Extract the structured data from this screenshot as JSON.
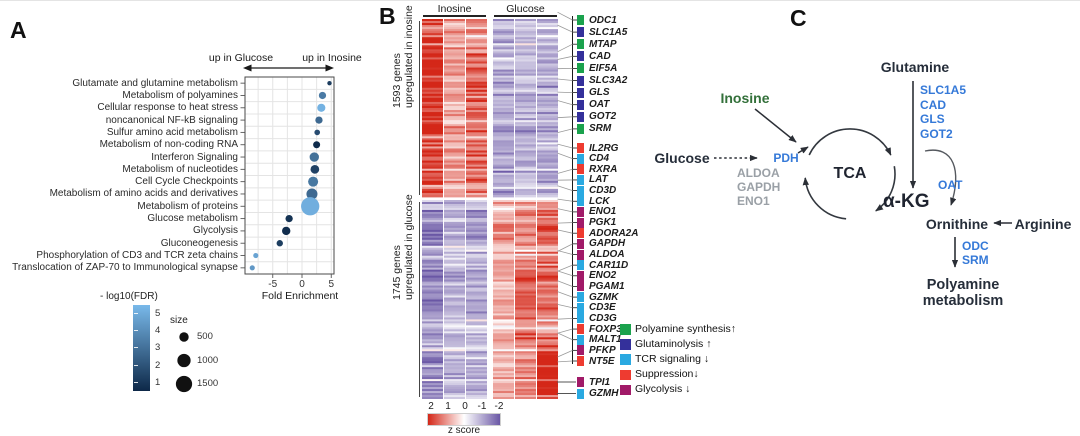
{
  "panels": {
    "a": {
      "label": "A"
    },
    "b": {
      "label": "B"
    },
    "c": {
      "label": "C"
    }
  },
  "chart_data": [
    {
      "type": "scatter",
      "panel": "A",
      "title": "",
      "xlabel": "Fold Enrichment",
      "x_ticks": [
        -5,
        0,
        5
      ],
      "xlim": [
        -9.7,
        5.5
      ],
      "grid": true,
      "header_left": "up in Glucose",
      "header_right": "up in Inosine",
      "color_legend_label": "- log10(FDR)",
      "color_legend_ticks": [
        5,
        4,
        3,
        2,
        1
      ],
      "color_scale": {
        "low_value": 1,
        "high_value": 5,
        "low_color": "#0d2848",
        "high_color": "#79b9ea"
      },
      "size_legend_label": "size",
      "size_legend_values": [
        500,
        1000,
        1500
      ],
      "points": [
        {
          "pathway": "Glutamate and glutamine metabolism",
          "fold_enrichment": 4.7,
          "neglog10_fdr": 1.6,
          "size": 110
        },
        {
          "pathway": "Metabolism of polyamines",
          "fold_enrichment": 3.5,
          "neglog10_fdr": 3.3,
          "size": 300
        },
        {
          "pathway": "Cellular response to heat stress",
          "fold_enrichment": 3.3,
          "neglog10_fdr": 4.8,
          "size": 380
        },
        {
          "pathway": "noncanonical NF-kB signaling",
          "fold_enrichment": 2.9,
          "neglog10_fdr": 2.8,
          "size": 300
        },
        {
          "pathway": "Sulfur amino acid metabolism",
          "fold_enrichment": 2.6,
          "neglog10_fdr": 2.0,
          "size": 180
        },
        {
          "pathway": "Metabolism of non-coding RNA",
          "fold_enrichment": 2.5,
          "neglog10_fdr": 1.1,
          "size": 280
        },
        {
          "pathway": "Interferon Signaling",
          "fold_enrichment": 2.1,
          "neglog10_fdr": 3.0,
          "size": 500
        },
        {
          "pathway": "Metabolism of nucleotides",
          "fold_enrichment": 2.2,
          "neglog10_fdr": 1.7,
          "size": 430
        },
        {
          "pathway": "Cell Cycle Checkpoints",
          "fold_enrichment": 1.9,
          "neglog10_fdr": 3.2,
          "size": 570
        },
        {
          "pathway": "Metabolism of amino acids and derivatives",
          "fold_enrichment": 1.7,
          "neglog10_fdr": 2.8,
          "size": 690
        },
        {
          "pathway": "Metabolism of proteins",
          "fold_enrichment": 1.4,
          "neglog10_fdr": 4.7,
          "size": 1900
        },
        {
          "pathway": "Glucose metabolism",
          "fold_enrichment": -2.2,
          "neglog10_fdr": 1.3,
          "size": 300
        },
        {
          "pathway": "Glycolysis",
          "fold_enrichment": -2.7,
          "neglog10_fdr": 1.1,
          "size": 400
        },
        {
          "pathway": "Gluconeogenesis",
          "fold_enrichment": -3.8,
          "neglog10_fdr": 1.6,
          "size": 230
        },
        {
          "pathway": "Phosphorylation of CD3 and TCR zeta chains",
          "fold_enrichment": -7.9,
          "neglog10_fdr": 4.4,
          "size": 150
        },
        {
          "pathway": "Translocation of ZAP-70 to Immunological synapse",
          "fold_enrichment": -8.5,
          "neglog10_fdr": 4.1,
          "size": 150
        }
      ]
    },
    {
      "type": "heatmap",
      "panel": "B",
      "col_groups": [
        {
          "label": "Inosine",
          "cols": 3
        },
        {
          "label": "Glucose",
          "cols": 3
        }
      ],
      "row_blocks": [
        {
          "label_line1": "1593 genes",
          "label_line2": "upregulated in inosine",
          "rows": 88,
          "col_mean_z": [
            1.6,
            0.75,
            1.15,
            -0.95,
            -0.8,
            -0.9
          ]
        },
        {
          "label_line1": "1745 genes",
          "label_line2": "upregulated in glucose",
          "rows": 100,
          "col_mean_z": [
            -1.15,
            -0.75,
            -0.85,
            0.7,
            0.95,
            1.25
          ]
        }
      ],
      "zscale": {
        "ticks": [
          2,
          1,
          0,
          -1,
          -2
        ],
        "label": "z score",
        "max_color": "#d42718",
        "mid_color": "#ffffff",
        "min_color": "#6a57a5"
      },
      "categories": [
        {
          "key": "polyamine",
          "label": "Polyamine synthesis↑",
          "color": "#1aa24d"
        },
        {
          "key": "glutaminolysis",
          "label": "Glutaminolysis ↑",
          "color": "#34309b"
        },
        {
          "key": "tcr",
          "label": "TCR signaling ↓",
          "color": "#2aa9e1"
        },
        {
          "key": "suppression",
          "label": "Suppression↓",
          "color": "#ee3b30"
        },
        {
          "key": "glycolysis",
          "label": "Glycolysis ↓",
          "color": "#a11a68"
        }
      ],
      "genes": [
        {
          "name": "ODC1",
          "category": "polyamine",
          "cluster": 0
        },
        {
          "name": "SLC1A5",
          "category": "glutaminolysis",
          "cluster": 0
        },
        {
          "name": "MTAP",
          "category": "polyamine",
          "cluster": 0
        },
        {
          "name": "CAD",
          "category": "glutaminolysis",
          "cluster": 0
        },
        {
          "name": "EIF5A",
          "category": "polyamine",
          "cluster": 0
        },
        {
          "name": "SLC3A2",
          "category": "glutaminolysis",
          "cluster": 0
        },
        {
          "name": "GLS",
          "category": "glutaminolysis",
          "cluster": 0
        },
        {
          "name": "OAT",
          "category": "glutaminolysis",
          "cluster": 0
        },
        {
          "name": "GOT2",
          "category": "glutaminolysis",
          "cluster": 0
        },
        {
          "name": "SRM",
          "category": "polyamine",
          "cluster": 0
        },
        {
          "name": "IL2RG",
          "category": "suppression",
          "cluster": 1
        },
        {
          "name": "CD4",
          "category": "tcr",
          "cluster": 1
        },
        {
          "name": "RXRA",
          "category": "suppression",
          "cluster": 1
        },
        {
          "name": "LAT",
          "category": "tcr",
          "cluster": 1
        },
        {
          "name": "CD3D",
          "category": "tcr",
          "cluster": 1
        },
        {
          "name": "LCK",
          "category": "tcr",
          "cluster": 1
        },
        {
          "name": "ENO1",
          "category": "glycolysis",
          "cluster": 1
        },
        {
          "name": "PGK1",
          "category": "glycolysis",
          "cluster": 1
        },
        {
          "name": "ADORA2A",
          "category": "suppression",
          "cluster": 1
        },
        {
          "name": "GAPDH",
          "category": "glycolysis",
          "cluster": 1
        },
        {
          "name": "ALDOA",
          "category": "glycolysis",
          "cluster": 1
        },
        {
          "name": "CAR11D",
          "category": "tcr",
          "cluster": 1
        },
        {
          "name": "ENO2",
          "category": "glycolysis",
          "cluster": 1
        },
        {
          "name": "PGAM1",
          "category": "glycolysis",
          "cluster": 1
        },
        {
          "name": "GZMK",
          "category": "tcr",
          "cluster": 1
        },
        {
          "name": "CD3E",
          "category": "tcr",
          "cluster": 1
        },
        {
          "name": "CD3G",
          "category": "tcr",
          "cluster": 1
        },
        {
          "name": "FOXP3",
          "category": "suppression",
          "cluster": 1
        },
        {
          "name": "MALT1",
          "category": "tcr",
          "cluster": 1
        },
        {
          "name": "PFKP",
          "category": "glycolysis",
          "cluster": 1
        },
        {
          "name": "NT5E",
          "category": "suppression",
          "cluster": 1
        },
        {
          "name": "TPI1",
          "category": "glycolysis",
          "cluster": 2
        },
        {
          "name": "GZMH",
          "category": "tcr",
          "cluster": 2
        }
      ]
    }
  ],
  "pathway_diagram": {
    "glutamine": "Glutamine",
    "glutamine_enzymes": [
      "SLC1A5",
      "CAD",
      "GLS",
      "GOT2"
    ],
    "inosine": "Inosine",
    "glucose": "Glucose",
    "glycolysis_enzymes": [
      "ALDOA",
      "GAPDH",
      "ENO1"
    ],
    "pdh": "PDH",
    "tca": "TCA",
    "akg": "α-KG",
    "oat": "OAT",
    "ornithine": "Ornithine",
    "arginine": "Arginine",
    "ornithine_enzymes": [
      "ODC",
      "SRM"
    ],
    "polyamine_line1": "Polyamine",
    "polyamine_line2": "metabolism",
    "colors": {
      "enzyme_blue": "#3579d8",
      "inosine_green": "#33703a",
      "muted_gray": "#9aa0a6",
      "arrow_dark": "#2b2f36"
    }
  }
}
